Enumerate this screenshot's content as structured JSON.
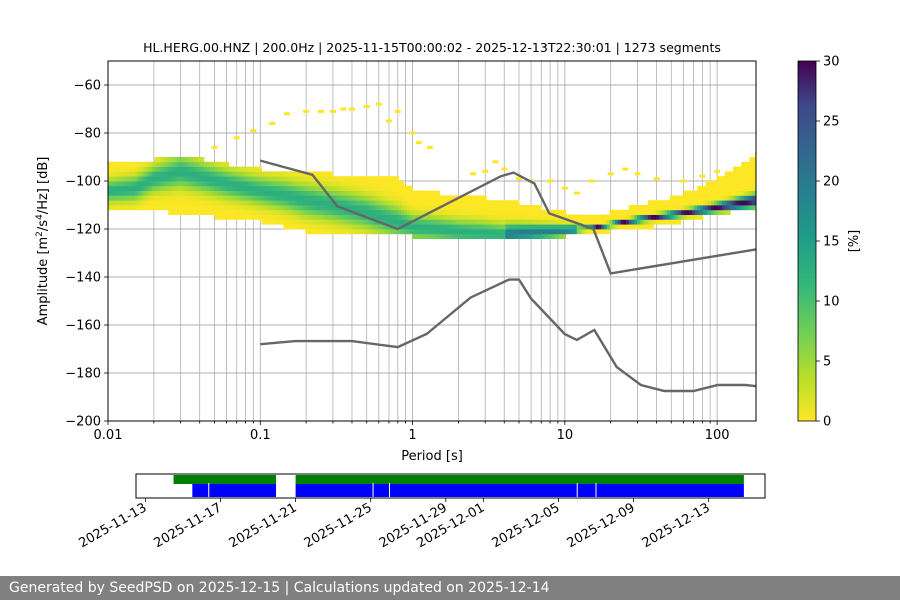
{
  "chart_data": [
    {
      "type": "heatmap",
      "title": "HL.HERG.00.HNZ | 200.0Hz | 2025-11-15T00:00:02 - 2025-12-13T22:30:01 | 1273 segments",
      "xlabel": "Period [s]",
      "ylabel": "Amplitude [m²/s⁴/Hz] [dB]",
      "xscale": "log",
      "xlim": [
        0.01,
        180
      ],
      "ylim": [
        -200,
        -50
      ],
      "x_ticks": [
        0.01,
        0.1,
        1,
        10,
        100
      ],
      "x_tick_labels": [
        "0.01",
        "0.1",
        "1",
        "10",
        "100"
      ],
      "y_ticks": [
        -200,
        -180,
        -160,
        -140,
        -120,
        -100,
        -80,
        -60
      ],
      "y_tick_labels": [
        "−200",
        "−180",
        "−160",
        "−140",
        "−120",
        "−100",
        "−80",
        "−60"
      ],
      "grid": true,
      "colormap": "viridis_r",
      "colorbar": {
        "label": "[%]",
        "range": [
          0,
          30
        ],
        "ticks": [
          0,
          5,
          10,
          15,
          20,
          25,
          30
        ],
        "tick_labels": [
          "0",
          "5",
          "10",
          "15",
          "20",
          "25",
          "30"
        ]
      },
      "mode_curve": {
        "period": [
          0.01,
          0.015,
          0.02,
          0.03,
          0.04,
          0.06,
          0.1,
          0.15,
          0.2,
          0.3,
          0.5,
          0.8,
          1,
          1.5,
          2,
          3,
          4,
          5,
          7,
          10,
          15,
          20,
          30,
          50,
          80,
          120,
          180
        ],
        "db": [
          -104,
          -103,
          -99,
          -96,
          -98,
          -101,
          -104,
          -106,
          -108,
          -110,
          -113,
          -117,
          -119,
          -120,
          -121,
          -121.5,
          -122,
          -121.5,
          -121,
          -120.5,
          -119.5,
          -118,
          -116,
          -114,
          -112,
          -110,
          -108
        ]
      },
      "spread_upper": {
        "period": [
          0.01,
          0.02,
          0.03,
          0.05,
          0.1,
          0.2,
          0.3,
          0.5,
          0.8,
          1,
          1.5,
          2,
          3,
          5,
          10,
          15,
          20,
          30,
          50,
          80,
          120,
          180
        ],
        "db": [
          -94,
          -92,
          -90,
          -93,
          -96,
          -97,
          -98,
          -99,
          -100,
          -104,
          -106,
          -107,
          -108,
          -110,
          -114,
          -116,
          -114,
          -111,
          -108,
          -103,
          -97,
          -90
        ]
      },
      "spread_lower": {
        "period": [
          0.01,
          0.02,
          0.03,
          0.05,
          0.1,
          0.2,
          0.3,
          0.5,
          0.8,
          1,
          1.5,
          2,
          3,
          5,
          10,
          15,
          20,
          30,
          50,
          80,
          120,
          180
        ],
        "db": [
          -110,
          -111,
          -113,
          -114,
          -116,
          -120,
          -121,
          -122,
          -122,
          -122,
          -123,
          -124,
          -124,
          -123,
          -122,
          -121,
          -120,
          -119,
          -117,
          -114,
          -112,
          -110
        ]
      },
      "scatter_outliers": {
        "period": [
          0.12,
          0.15,
          0.2,
          0.3,
          0.5,
          0.6,
          0.8,
          1,
          1.3,
          0.4,
          0.35,
          0.25,
          0.7,
          1.1,
          2.5,
          3,
          3.5,
          4,
          5,
          6,
          8,
          10,
          12,
          15,
          20,
          25,
          30,
          40,
          60,
          80,
          100,
          0.05,
          0.07,
          0.09
        ],
        "db": [
          -76,
          -72,
          -71,
          -71,
          -69,
          -68,
          -71,
          -80,
          -86,
          -70,
          -70,
          -71,
          -75,
          -84,
          -97,
          -96,
          -92,
          -95,
          -99,
          -100,
          -100,
          -103,
          -105,
          -100,
          -97,
          -95,
          -97,
          -99,
          -100,
          -98,
          -96,
          -86,
          -82,
          -79
        ]
      },
      "nlnm": {
        "period": [
          0.1,
          0.17,
          0.4,
          0.8,
          1.24,
          2.4,
          4.3,
          5,
          6,
          10,
          12,
          15.6,
          21.9,
          31.6,
          45,
          70,
          101,
          154,
          180
        ],
        "db": [
          -168,
          -166.7,
          -166.7,
          -169.2,
          -163.7,
          -148.6,
          -141.1,
          -141.1,
          -149,
          -163.8,
          -166.2,
          -162.1,
          -177.5,
          -185,
          -187.5,
          -187.5,
          -185,
          -185,
          -185.5
        ]
      },
      "nhnm": {
        "period": [
          0.1,
          0.22,
          0.32,
          0.8,
          3.8,
          4.6,
          6.3,
          7.9,
          15.4,
          20,
          180
        ],
        "db": [
          -91.5,
          -97.4,
          -110.5,
          -120,
          -98,
          -96.5,
          -101,
          -113.5,
          -120,
          -138.5,
          -128.5
        ]
      }
    },
    {
      "type": "timeline",
      "date_ticks": [
        "2025-11-13",
        "2025-11-17",
        "2025-11-21",
        "2025-11-25",
        "2025-11-29",
        "2025-12-01",
        "2025-12-05",
        "2025-12-09",
        "2025-12-13"
      ],
      "range": [
        "2025-11-12T12:00",
        "2025-12-16T00:00"
      ],
      "green_segments": [
        [
          "2025-11-14T12:00",
          "2025-11-19T23:00"
        ],
        [
          "2025-11-21T00:00",
          "2025-12-14T21:00"
        ]
      ],
      "blue_segments": [
        [
          "2025-11-15T12:00",
          "2025-11-19T23:00"
        ],
        [
          "2025-11-21T00:00",
          "2025-12-14T21:00"
        ]
      ],
      "gaps": [
        "2025-11-16T09:00",
        "2025-11-25T03:00",
        "2025-11-26T00:00",
        "2025-12-06T00:00",
        "2025-12-07T00:00"
      ]
    }
  ],
  "footer": {
    "text": "Generated by SeedPSD on 2025-12-15 | Calculations updated on 2025-12-14"
  }
}
